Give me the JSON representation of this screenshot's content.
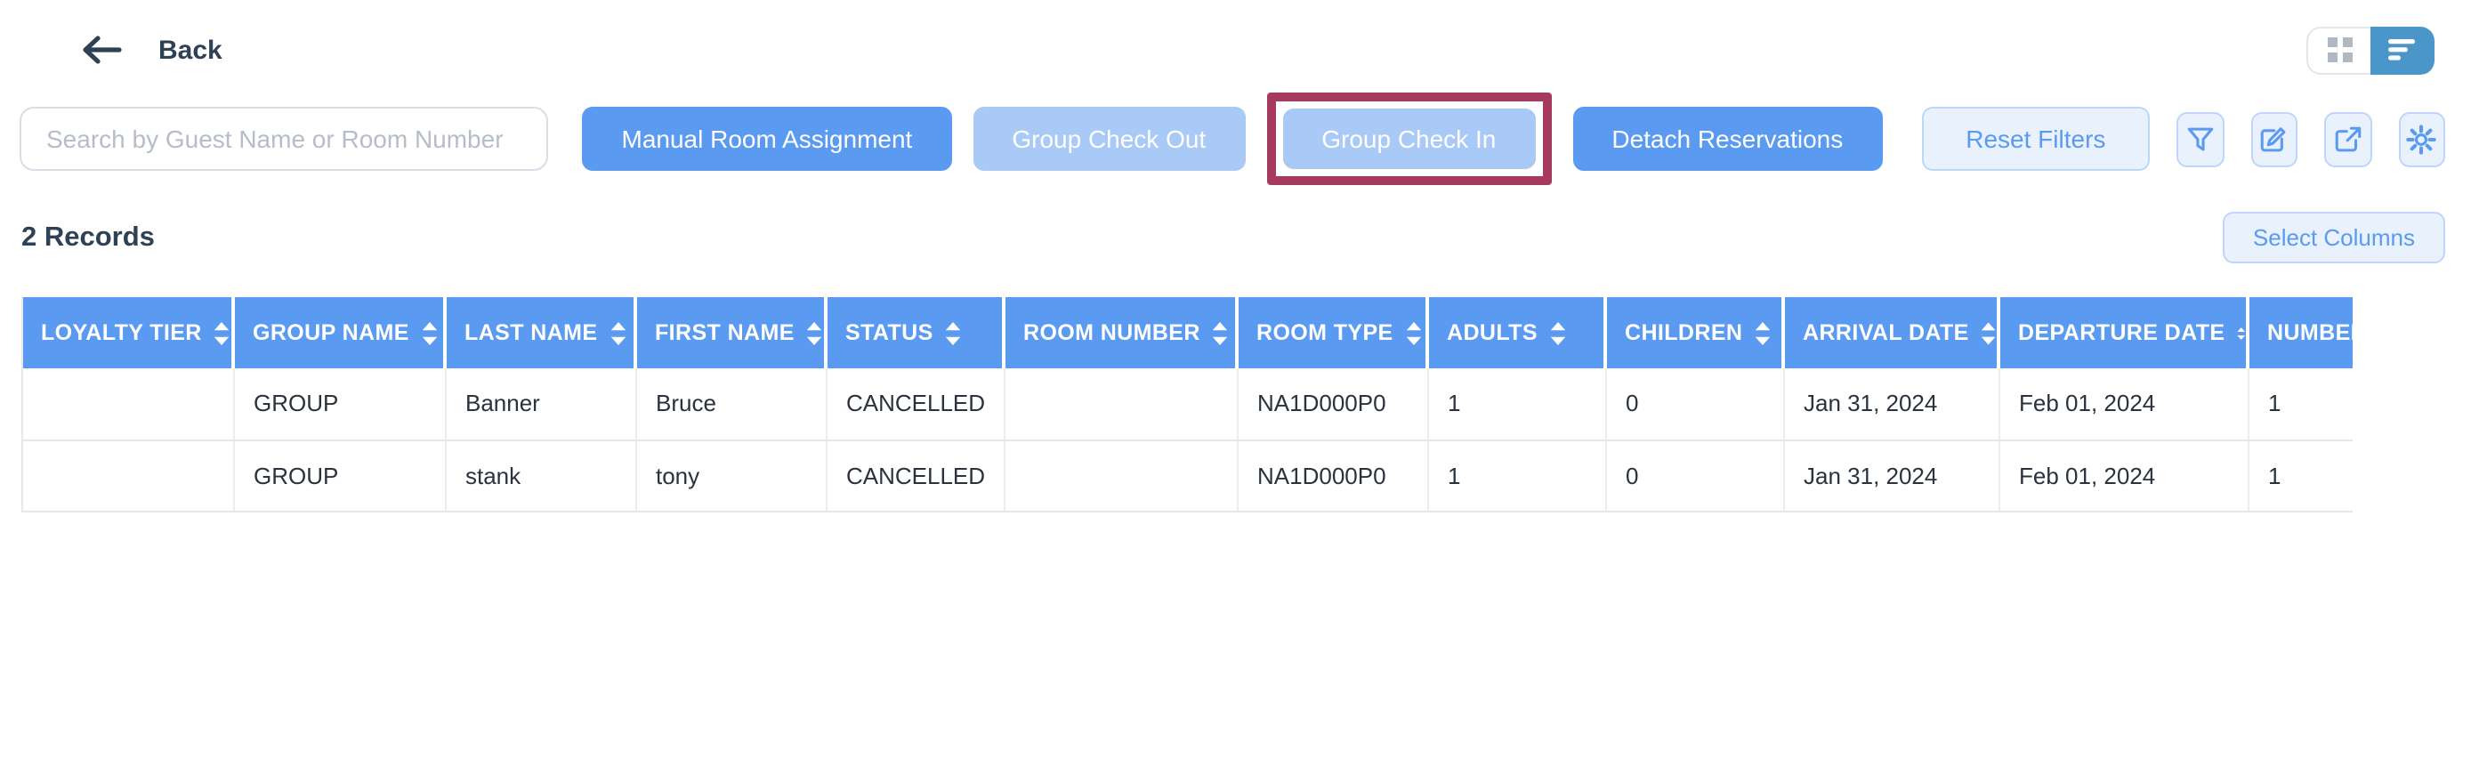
{
  "colors": {
    "primary_blue": "#5a9af1",
    "disabled_blue": "#a9c9f7",
    "light_button_bg": "#e9f1fd",
    "light_button_border": "#bdd6f9",
    "toggle_active_blue": "#4b96c9",
    "annotation_highlight": "#a63a5e",
    "heading_text": "#2f4154",
    "cell_text": "#2a323e"
  },
  "topbar": {
    "back_label": "Back",
    "view_toggle": {
      "active": "list",
      "options": [
        "grid-view-icon",
        "list-view-icon"
      ]
    }
  },
  "toolbar": {
    "search_placeholder": "Search by Guest Name or Room Number",
    "manual_room_assignment": "Manual Room Assignment",
    "group_check_out": "Group Check Out",
    "group_check_in": "Group Check In",
    "detach_reservations": "Detach Reservations",
    "reset_filters": "Reset Filters",
    "icon_buttons": [
      "filter-icon",
      "edit-icon",
      "external-link-icon",
      "settings-icon"
    ]
  },
  "records_bar": {
    "count": "2 Records",
    "select_columns": "Select Columns"
  },
  "table": {
    "columns": [
      "LOYALTY TIER",
      "GROUP NAME",
      "LAST NAME",
      "FIRST NAME",
      "STATUS",
      "ROOM NUMBER",
      "ROOM TYPE",
      "ADULTS",
      "CHILDREN",
      "ARRIVAL DATE",
      "DEPARTURE DATE",
      "NUMBER"
    ],
    "rows": [
      [
        "",
        "GROUP",
        "Banner",
        "Bruce",
        "CANCELLED",
        "",
        "NA1D000P0",
        "1",
        "0",
        "Jan 31, 2024",
        "Feb 01, 2024",
        "1"
      ],
      [
        "",
        "GROUP",
        "stank",
        "tony",
        "CANCELLED",
        "",
        "NA1D000P0",
        "1",
        "0",
        "Jan 31, 2024",
        "Feb 01, 2024",
        "1"
      ]
    ]
  },
  "icons": {
    "back-arrow-icon": "left arrow",
    "grid-view-icon": "2x2 squares",
    "list-view-icon": "3 decreasing bars",
    "filter-icon": "funnel",
    "edit-icon": "pencil on square",
    "external-link-icon": "arrow out of square",
    "settings-icon": "gear",
    "sort-icon": "up/down triangles"
  }
}
